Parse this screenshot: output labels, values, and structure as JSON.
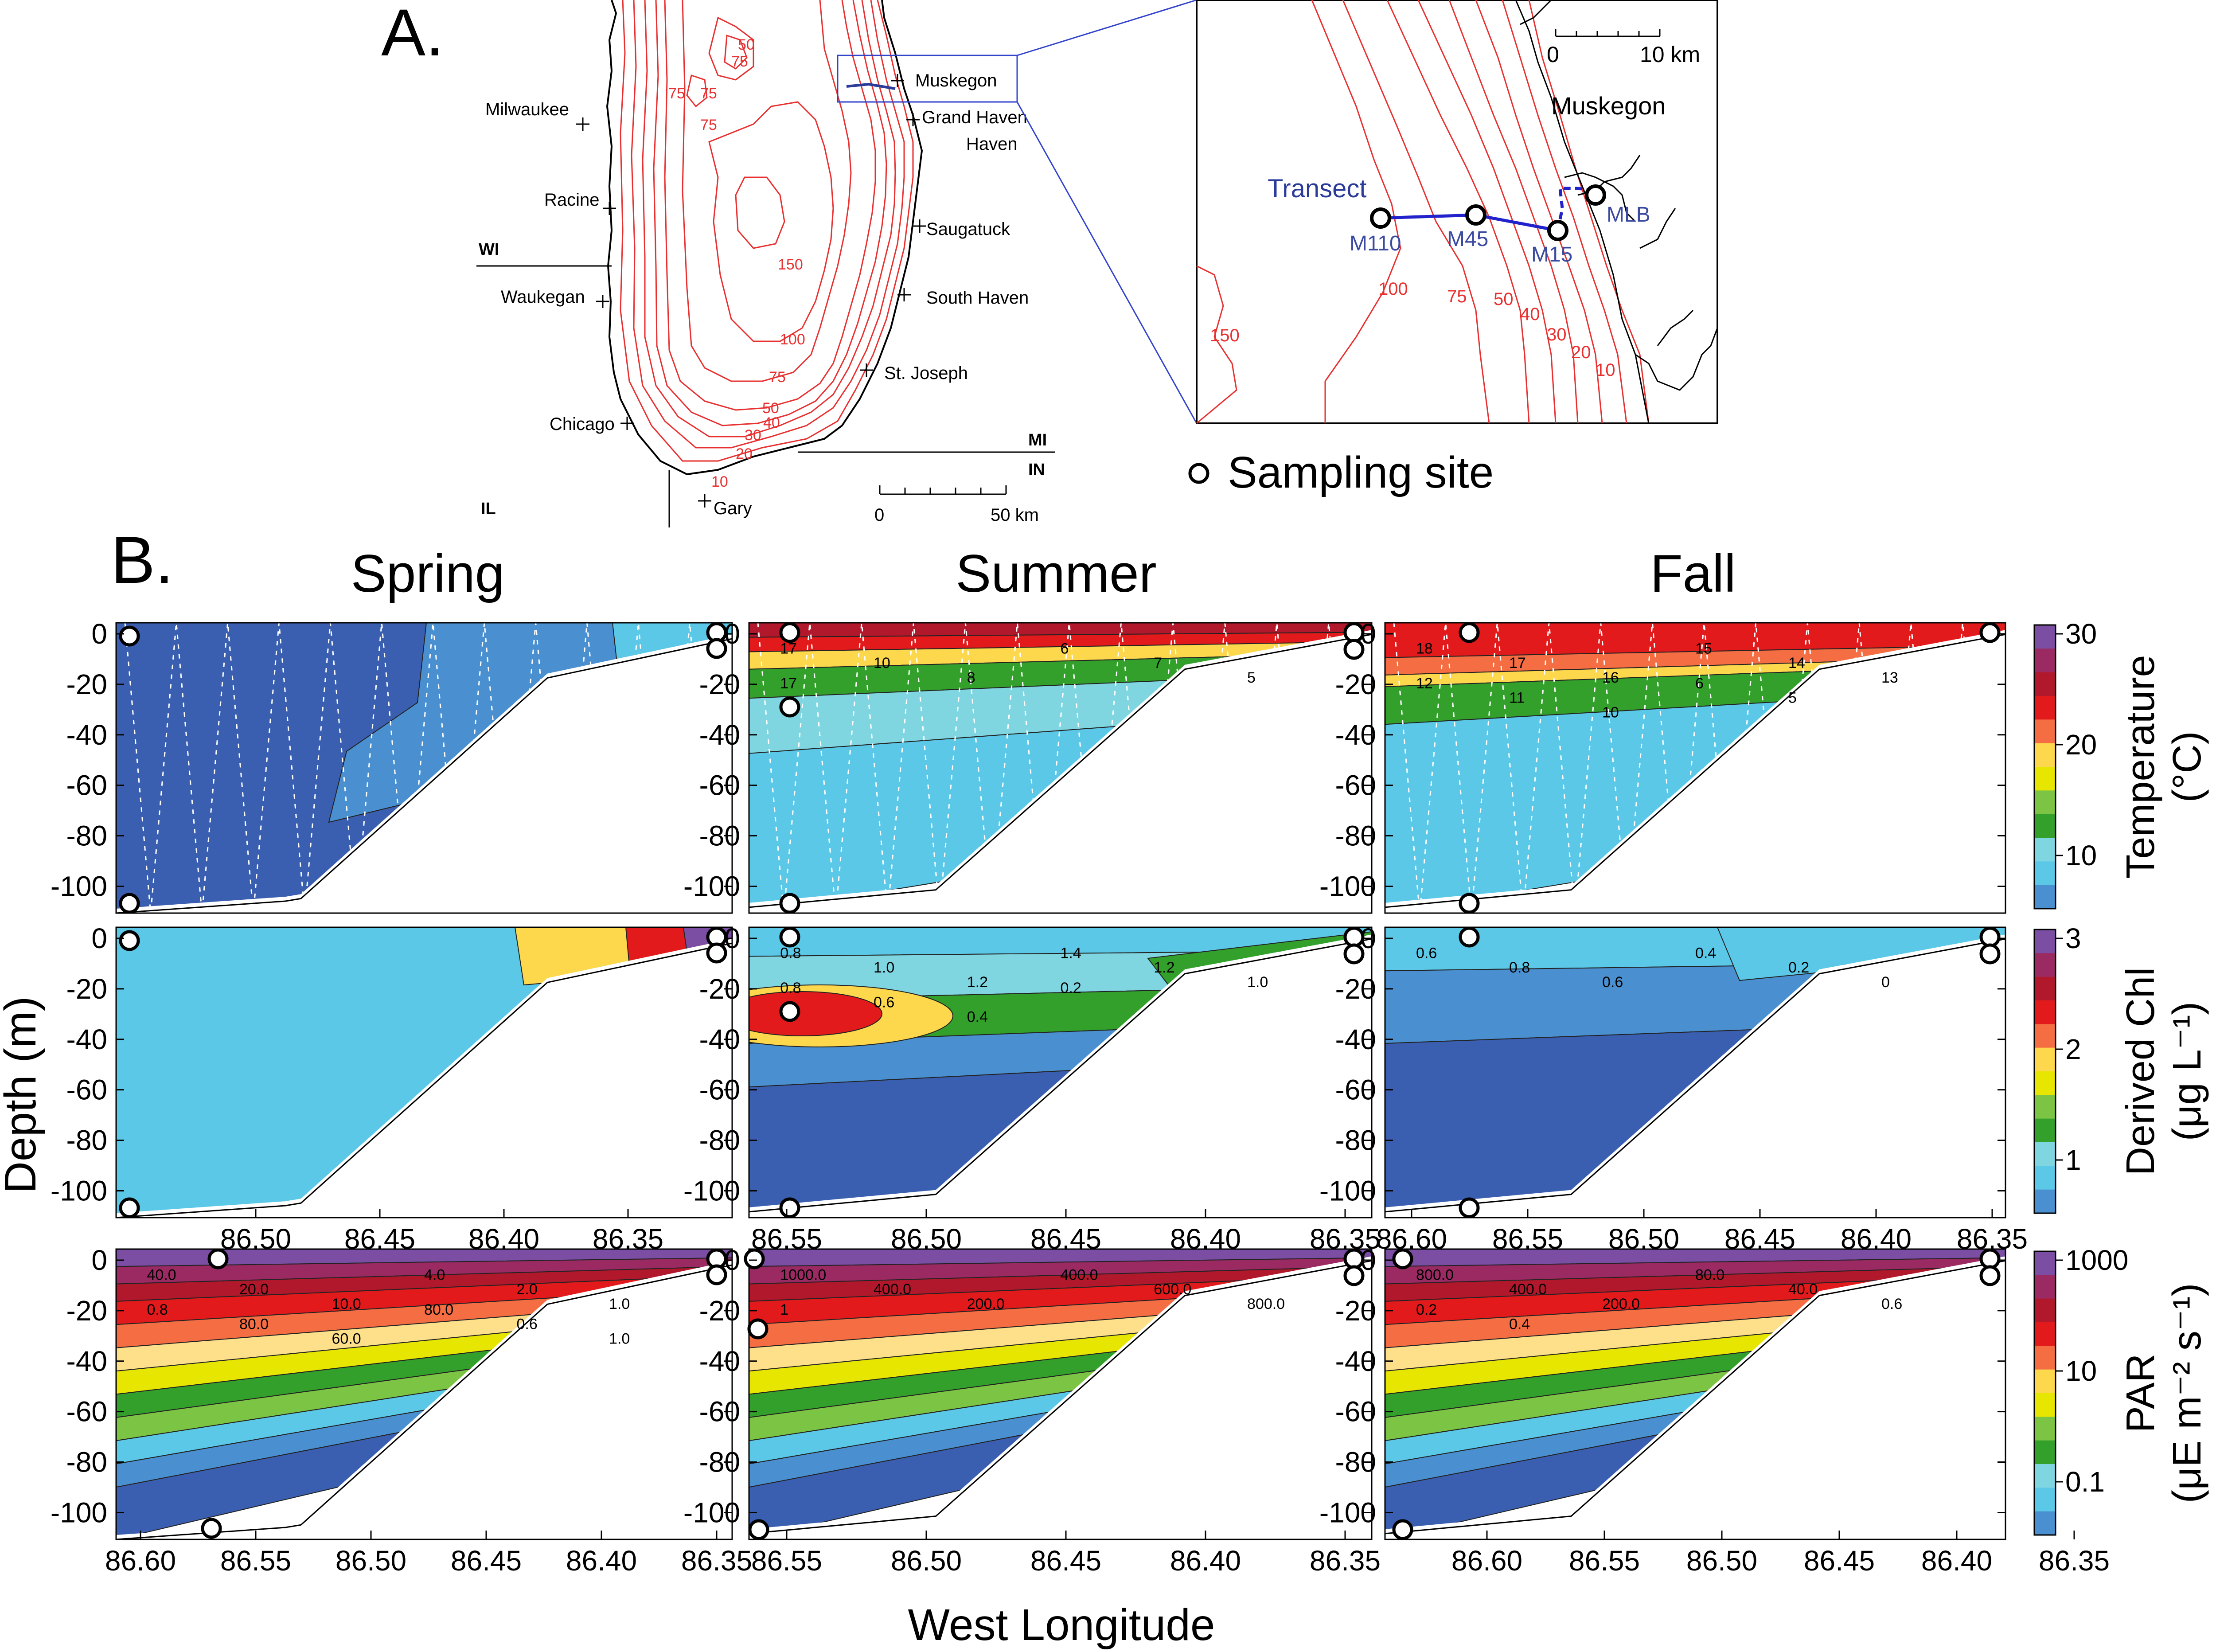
{
  "panel_a": {
    "letter": "A.",
    "states": [
      "WI",
      "MI",
      "IN",
      "IL"
    ],
    "cities": [
      "Milwaukee",
      "Racine",
      "Waukegan",
      "Chicago",
      "Gary",
      "St. Joseph",
      "South Haven",
      "Saugatuck",
      "Grand Haven",
      "Muskegon"
    ],
    "depth_labels": [
      "50",
      "75",
      "75",
      "75",
      "75",
      "150",
      "100",
      "75",
      "50",
      "40",
      "30",
      "20",
      "10"
    ],
    "scale": {
      "zero": "0",
      "end": "50 km"
    },
    "inset": {
      "scale": {
        "zero": "0",
        "end": "10 km"
      },
      "town": "Muskegon",
      "transect_label": "Transect",
      "stations": [
        "M110",
        "M45",
        "M15",
        "MLB"
      ],
      "depth_labels": [
        "150",
        "100",
        "75",
        "50",
        "40",
        "30",
        "20",
        "10"
      ]
    },
    "legend_label": "Sampling site"
  },
  "panel_b": {
    "letter": "B.",
    "seasons": [
      "Spring",
      "Summer",
      "Fall"
    ],
    "y_axis_label": "Depth (m)",
    "x_axis_label": "West Longitude",
    "y_ticks": [
      "0",
      "-20",
      "-40",
      "-60",
      "-80",
      "-100"
    ],
    "x_ticks": {
      "spring": [
        "86.60",
        "86.55",
        "86.50",
        "86.45",
        "86.40",
        "86.35"
      ],
      "summer": [
        "86.55",
        "86.50",
        "86.45",
        "86.40",
        "86.35"
      ],
      "fall": [
        "86.60",
        "86.55",
        "86.50",
        "86.45",
        "86.40",
        "86.35"
      ]
    },
    "row_axes_ticks": {
      "chl_spring": [
        "86.50",
        "86.45",
        "86.40",
        "86.35"
      ],
      "chl_summer": [
        "86.55",
        "86.50",
        "86.45",
        "86.40",
        "86.35"
      ],
      "chl_fall": [
        "86.60",
        "86.55",
        "86.50",
        "86.45",
        "86.40",
        "86.35"
      ]
    },
    "colorbars": [
      {
        "title": "Temperature",
        "unit": "(°C)",
        "ticks": [
          "30",
          "20",
          "10"
        ],
        "colors": [
          "#6a3d9a",
          "#b2182b",
          "#e31a1c",
          "#fd8d3c",
          "#ffff33",
          "#33a02c",
          "#5bc8e8",
          "#3b6fb6"
        ]
      },
      {
        "title": "Derived Chl",
        "unit": "(μg L⁻¹)",
        "ticks": [
          "3",
          "2",
          "1"
        ],
        "colors": [
          "#6a3d9a",
          "#b2182b",
          "#e31a1c",
          "#fd8d3c",
          "#ffff33",
          "#33a02c",
          "#5bc8e8",
          "#3b6fb6"
        ]
      },
      {
        "title": "PAR",
        "unit": "(μE m⁻² s⁻¹)",
        "ticks": [
          "1000",
          "10",
          "0.1"
        ],
        "colors": [
          "#6a3d9a",
          "#b2182b",
          "#e31a1c",
          "#fd8d3c",
          "#ffff33",
          "#33a02c",
          "#5bc8e8",
          "#3b6fb6"
        ]
      }
    ],
    "contour_labels": {
      "temp_summer": [
        "17",
        "10",
        "8",
        "6",
        "7",
        "5",
        "17"
      ],
      "temp_fall": [
        "18",
        "17",
        "16",
        "15",
        "14",
        "13",
        "12",
        "11",
        "10",
        "6",
        "5"
      ],
      "chl_summer": [
        "0.8",
        "1.0",
        "1.2",
        "1.4",
        "1.2",
        "1.0",
        "0.8",
        "0.6",
        "0.4",
        "0.2"
      ],
      "chl_fall": [
        "0.6",
        "0.8",
        "0.6",
        "0.4",
        "0.2",
        "0"
      ],
      "par_spring": [
        "40.0",
        "20.0",
        "10.0",
        "4.0",
        "2.0",
        "1.0",
        "0.8",
        "80.0",
        "60.0",
        "80.0",
        "0.6",
        "1.0"
      ],
      "par_summer": [
        "1000.0",
        "400.0",
        "200.0",
        "400.0",
        "600.0",
        "800.0",
        "1"
      ],
      "par_fall": [
        "800.0",
        "400.0",
        "200.0",
        "80.0",
        "40.0",
        "0.6",
        "0.2",
        "0.4"
      ]
    }
  }
}
